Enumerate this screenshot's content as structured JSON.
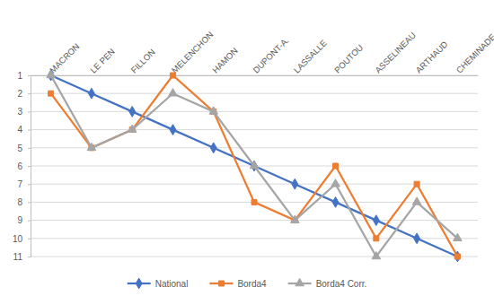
{
  "chart_data": {
    "type": "line",
    "categories": [
      "MACRON",
      "LE PEN",
      "FILLON",
      "MELENCHON",
      "HAMON",
      "DUPONT-A.",
      "LASSALLE",
      "POUTOU",
      "ASSELINEAU",
      "ARTHAUD",
      "CHEMINADE"
    ],
    "series": [
      {
        "name": "National",
        "color": "#4472c4",
        "marker": "diamond",
        "values": [
          1,
          2,
          3,
          4,
          5,
          6,
          7,
          8,
          9,
          10,
          11
        ]
      },
      {
        "name": "Borda4",
        "color": "#ed7d31",
        "marker": "square",
        "values": [
          2,
          5,
          4,
          1,
          3,
          8,
          9,
          6,
          10,
          7,
          11
        ]
      },
      {
        "name": "Borda4 Corr.",
        "color": "#a5a5a5",
        "marker": "triangle",
        "values": [
          1,
          5,
          4,
          2,
          3,
          6,
          9,
          7,
          11,
          8,
          10
        ]
      }
    ],
    "ylim": [
      11,
      1
    ],
    "yticks": [
      1,
      2,
      3,
      4,
      5,
      6,
      7,
      8,
      9,
      10,
      11
    ],
    "grid": true,
    "legend": "bottom"
  }
}
